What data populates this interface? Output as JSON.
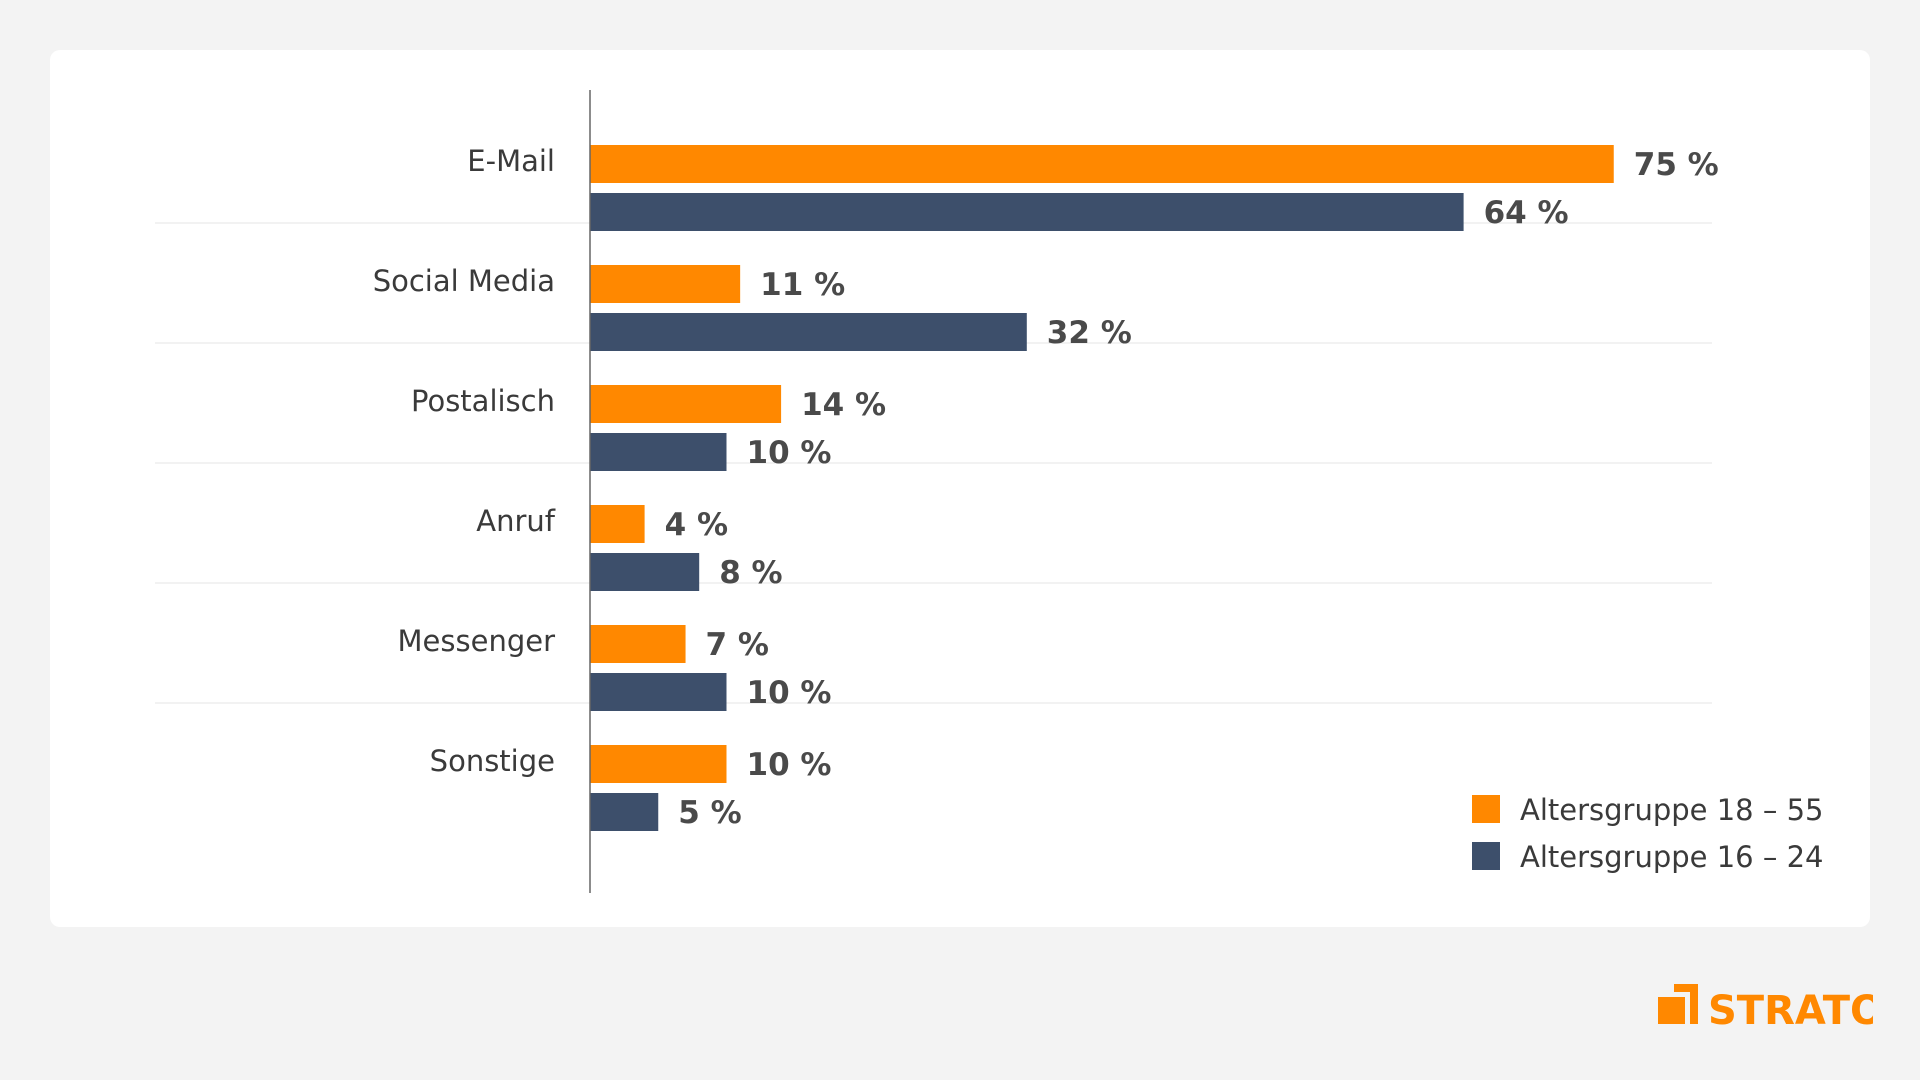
{
  "chart_data": {
    "type": "bar",
    "orientation": "horizontal",
    "categories": [
      "E-Mail",
      "Social Media",
      "Postalisch",
      "Anruf",
      "Messenger",
      "Sonstige"
    ],
    "series": [
      {
        "name": "Altersgruppe 18 – 55",
        "color": "#ff8800",
        "values": [
          75,
          11,
          14,
          4,
          7,
          10
        ],
        "labels": [
          "75 %",
          "11 %",
          "14 %",
          "4 %",
          "7 %",
          "10 %"
        ]
      },
      {
        "name": "Altersgruppe 16 – 24",
        "color": "#3d4f6b",
        "values": [
          64,
          32,
          10,
          8,
          10,
          5
        ],
        "labels": [
          "64 %",
          "32 %",
          "10 %",
          "8 %",
          "10 %",
          "5 %"
        ]
      }
    ],
    "xlim": [
      0,
      100
    ],
    "grid": false,
    "legend_position": "bottom-right"
  },
  "brand": {
    "name": "STRATO",
    "color": "#ff8800"
  }
}
